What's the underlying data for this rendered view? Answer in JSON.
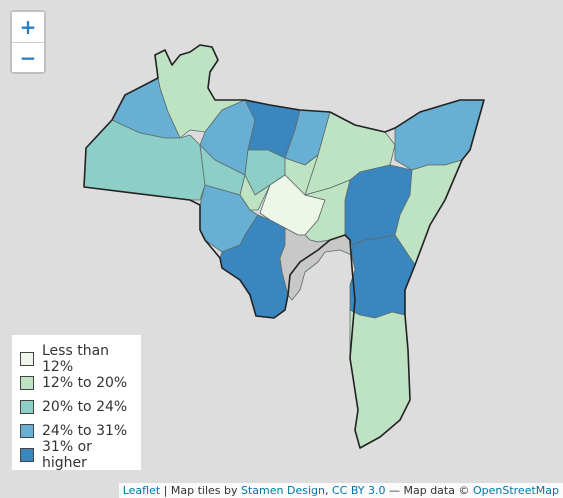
{
  "zoom": {
    "in_label": "+",
    "out_label": "−"
  },
  "legend": [
    {
      "label": "Less than 12%",
      "color": "#edf6e9"
    },
    {
      "label": "12% to 20%",
      "color": "#bee3c2"
    },
    {
      "label": "20% to 24%",
      "color": "#8dcfc7"
    },
    {
      "label": "24% to 31%",
      "color": "#67afd3"
    },
    {
      "label": "31% or higher",
      "color": "#3a87c0"
    }
  ],
  "no_data_color": "#c8c8c8",
  "attribution": {
    "leaflet": "Leaflet",
    "sep1": " | Map tiles by ",
    "stamen": "Stamen Design",
    "sep2": ", ",
    "license": "CC BY 3.0",
    "sep3": " — Map data © ",
    "osm": "OpenStreetMap"
  }
}
